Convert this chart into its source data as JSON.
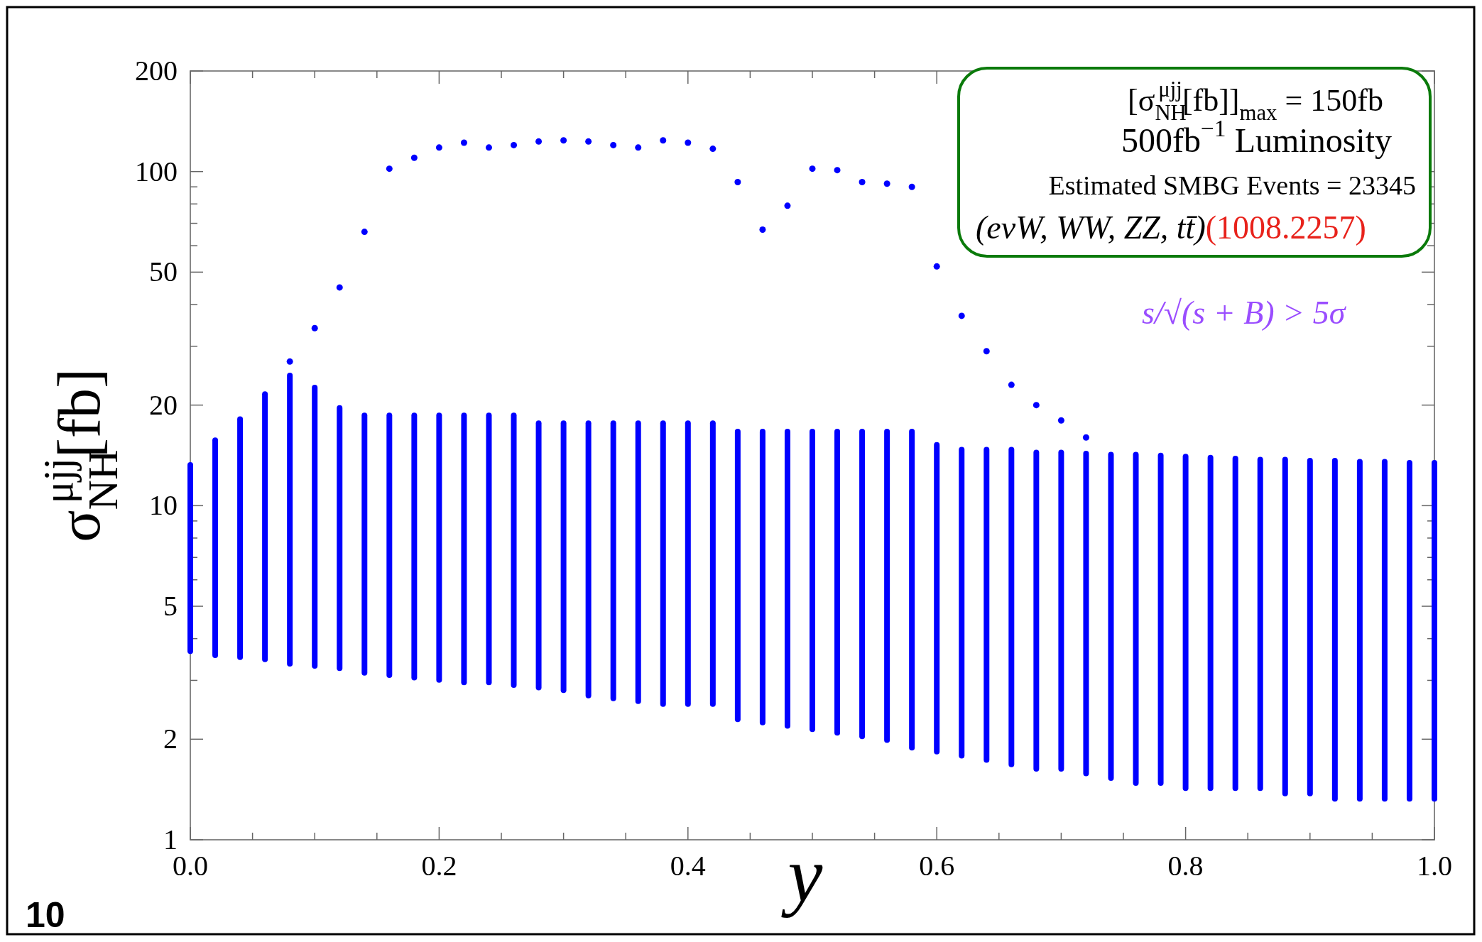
{
  "chart_data": {
    "type": "bar",
    "xlabel": "y",
    "ylabel": "σ$_{NH}$$^{μjj}$[fb]",
    "log": "y",
    "x": [
      0,
      0.02,
      0.04,
      0.06,
      0.08,
      0.1,
      0.12,
      0.14,
      0.16,
      0.18,
      0.2,
      0.22,
      0.24,
      0.26,
      0.28,
      0.3,
      0.32,
      0.34,
      0.36,
      0.38,
      0.4,
      0.42,
      0.44,
      0.46,
      0.48,
      0.5,
      0.52,
      0.54,
      0.56,
      0.58,
      0.6,
      0.62,
      0.64,
      0.66,
      0.68,
      0.7,
      0.72,
      0.74,
      0.76,
      0.78,
      0.8,
      0.82,
      0.84,
      0.86,
      0.88,
      0.9,
      0.92,
      0.94,
      0.96,
      0.98,
      1
    ],
    "xlim": [
      0,
      1
    ],
    "xticks": [
      {
        "value": 0,
        "label": "0.0"
      },
      {
        "value": 0.05,
        "label": null
      },
      {
        "value": 0.1,
        "label": null
      },
      {
        "value": 0.15,
        "label": null
      },
      {
        "value": 0.2,
        "label": "0.2"
      },
      {
        "value": 0.25,
        "label": null
      },
      {
        "value": 0.3,
        "label": null
      },
      {
        "value": 0.35,
        "label": null
      },
      {
        "value": 0.4,
        "label": "0.4"
      },
      {
        "value": 0.45,
        "label": null
      },
      {
        "value": 0.5,
        "label": null
      },
      {
        "value": 0.55,
        "label": null
      },
      {
        "value": 0.6,
        "label": "0.6"
      },
      {
        "value": 0.65,
        "label": null
      },
      {
        "value": 0.7,
        "label": null
      },
      {
        "value": 0.75,
        "label": null
      },
      {
        "value": 0.8,
        "label": "0.8"
      },
      {
        "value": 0.85,
        "label": null
      },
      {
        "value": 0.9,
        "label": null
      },
      {
        "value": 0.95,
        "label": null
      },
      {
        "value": 1,
        "label": "1.0"
      }
    ],
    "ylim": [
      1,
      200
    ],
    "yticks": [
      1,
      2,
      {
        "value": 3,
        "label": null
      },
      {
        "value": 4,
        "label": null
      },
      5,
      {
        "value": 6,
        "label": null
      },
      {
        "value": 7,
        "label": null
      },
      {
        "value": 8,
        "label": null
      },
      {
        "value": 9,
        "label": null
      },
      10,
      20,
      {
        "value": 30,
        "label": null
      },
      {
        "value": 40,
        "label": null
      },
      50,
      {
        "value": 60,
        "label": null
      },
      {
        "value": 70,
        "label": null
      },
      {
        "value": 80,
        "label": null
      },
      {
        "value": 90,
        "label": null
      },
      100,
      200
    ],
    "series": [
      {
        "type": "bar",
        "color": "#0000ff",
        "base": [
          3.6,
          3.5,
          3.45,
          3.4,
          3.3,
          3.25,
          3.2,
          3.1,
          3.05,
          3.0,
          2.95,
          2.9,
          2.9,
          2.85,
          2.8,
          2.75,
          2.65,
          2.6,
          2.55,
          2.5,
          2.5,
          2.5,
          2.25,
          2.2,
          2.15,
          2.1,
          2.05,
          2.0,
          1.95,
          1.85,
          1.8,
          1.75,
          1.7,
          1.65,
          1.6,
          1.6,
          1.55,
          1.5,
          1.45,
          1.45,
          1.4,
          1.4,
          1.4,
          1.4,
          1.35,
          1.35,
          1.3,
          1.3,
          1.3,
          1.3,
          1.3
        ],
        "values": [
          9.9,
          12.5,
          15.05,
          18.6,
          21.7,
          19.75,
          16.8,
          15.9,
          15.95,
          16,
          16.05,
          16.1,
          16.1,
          16.15,
          15.2,
          15.25,
          15.35,
          15.4,
          15.45,
          15.5,
          15.5,
          15.5,
          14.75,
          14.8,
          14.85,
          14.9,
          14.95,
          15,
          15.05,
          15.15,
          13.7,
          13.25,
          13.3,
          13.35,
          13.1,
          13.1,
          13.05,
          13,
          13.05,
          12.95,
          12.9,
          12.8,
          12.7,
          12.6,
          12.65,
          12.55,
          12.6,
          12.5,
          12.5,
          12.4,
          12.4
        ]
      },
      {
        "type": "scatter",
        "color": "#0000ff",
        "marker": "circle",
        "x": [
          0.08,
          0.1,
          0.12,
          0.14,
          0.16,
          0.18,
          0.2,
          0.22,
          0.24,
          0.26,
          0.28,
          0.3,
          0.32,
          0.34,
          0.36,
          0.38,
          0.4,
          0.42,
          0.44,
          0.46,
          0.48,
          0.5,
          0.52,
          0.54,
          0.56,
          0.58,
          0.6,
          0.62,
          0.64,
          0.66,
          0.68,
          0.7,
          0.72
        ],
        "values": [
          27,
          34,
          45,
          66,
          102,
          110,
          118,
          122,
          118,
          120,
          123,
          124,
          123,
          120,
          118,
          124,
          122,
          117,
          93,
          67,
          79,
          102,
          101,
          93,
          92,
          90,
          52,
          37,
          29,
          23,
          20,
          18,
          16
        ]
      }
    ],
    "annotations": [
      "[σ$_{NH}$$^{μjj}$[fb]]$_{max}$ = 150fb",
      "500fb$^{−1}$ Luminosity",
      "Estimated SMBG Events = 23345",
      "(eνW, WW, ZZ, tt̄)",
      "(1008.2257)",
      "s/√(s + B) > 5σ",
      "10"
    ]
  }
}
